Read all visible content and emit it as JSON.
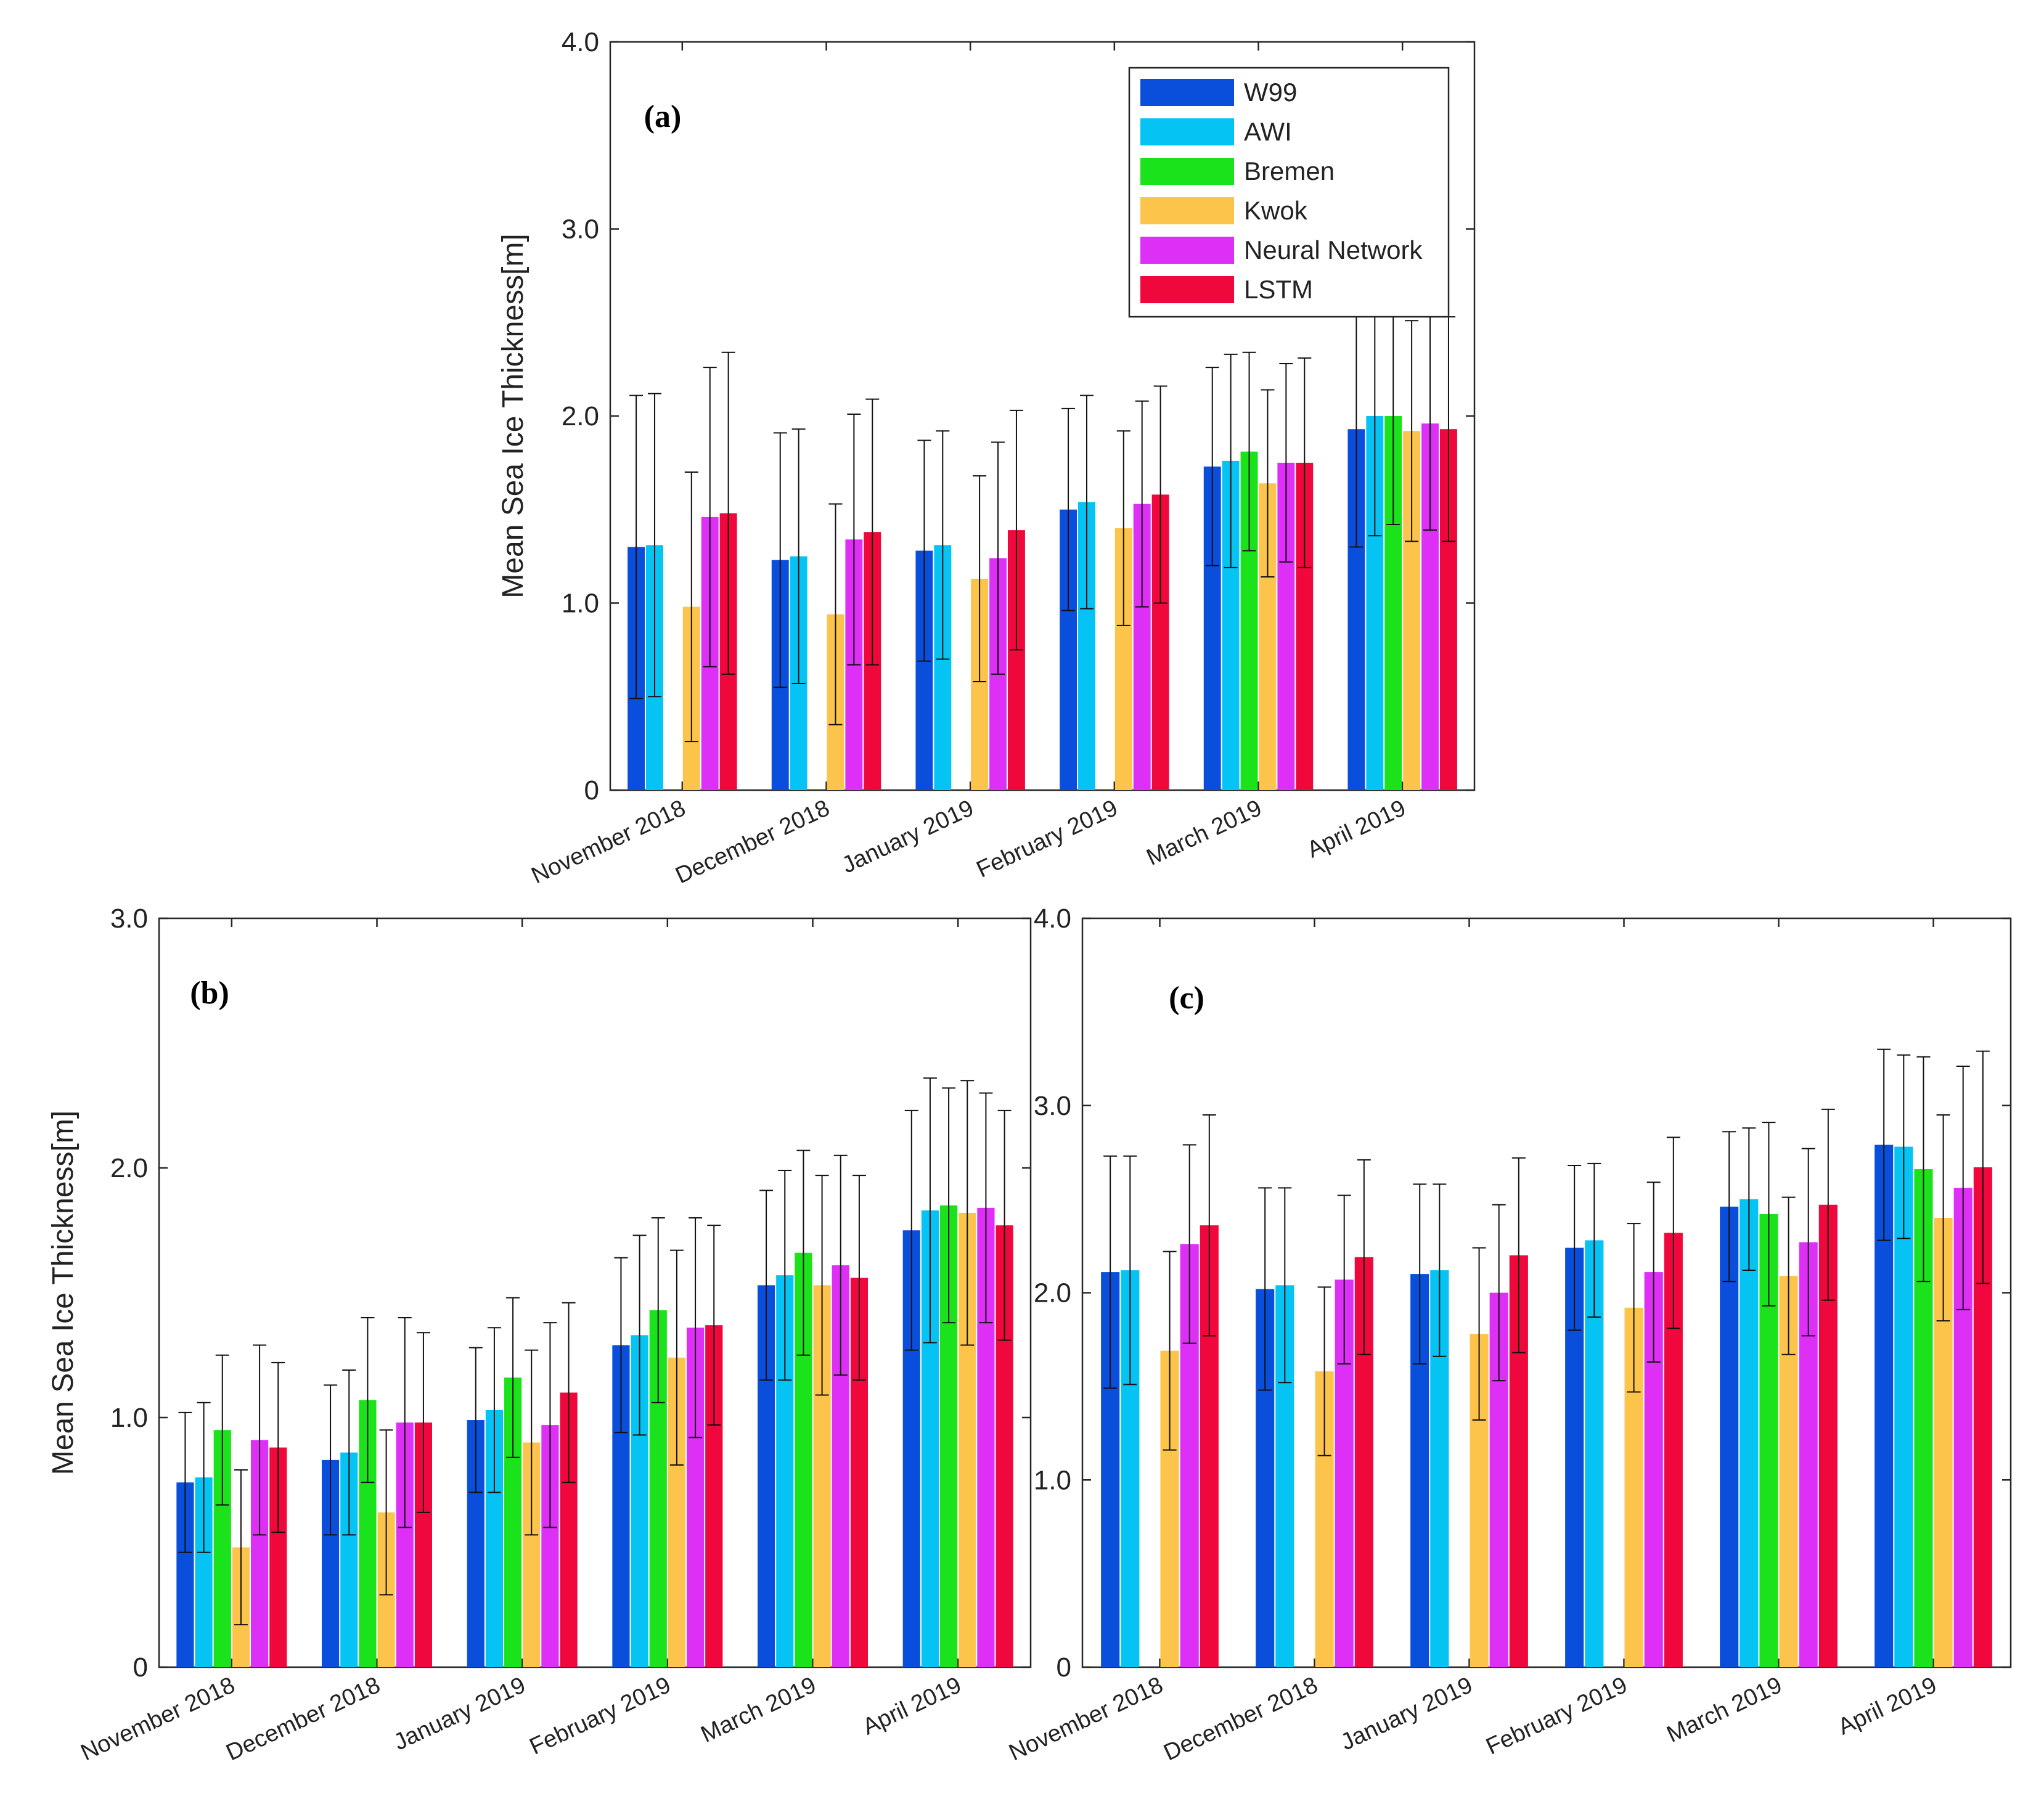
{
  "chart_data": [
    {
      "type": "bar",
      "panel_label": "(a)",
      "ylabel": "Mean Sea Ice Thickness[m]",
      "xlabel": "",
      "ylim": [
        0,
        4
      ],
      "yticks": [
        0,
        1,
        2,
        3,
        4
      ],
      "ytick_labels": [
        "0",
        "1.0",
        "2.0",
        "3.0",
        "4.0"
      ],
      "grid": false,
      "legend": {
        "position": "top-right",
        "entries": [
          "W99",
          "AWI",
          "Bremen",
          "Kwok",
          "Neural Network",
          "LSTM"
        ]
      },
      "categories": [
        "November 2018",
        "December 2018",
        "January 2019",
        "February 2019",
        "March 2019",
        "April 2019"
      ],
      "series": [
        {
          "name": "W99",
          "color": "#0a4fdc",
          "values": [
            1.3,
            1.23,
            1.28,
            1.5,
            1.73,
            1.93
          ],
          "std": [
            0.81,
            0.68,
            0.59,
            0.54,
            0.53,
            0.63
          ]
        },
        {
          "name": "AWI",
          "color": "#05c3f3",
          "values": [
            1.31,
            1.25,
            1.31,
            1.54,
            1.76,
            2.0
          ],
          "std": [
            0.81,
            0.68,
            0.61,
            0.57,
            0.57,
            0.64
          ]
        },
        {
          "name": "Bremen",
          "color": "#1be31b",
          "values": [
            null,
            null,
            null,
            null,
            1.81,
            2.0
          ],
          "std": [
            null,
            null,
            null,
            null,
            0.53,
            0.58
          ]
        },
        {
          "name": "Kwok",
          "color": "#fcc44b",
          "values": [
            0.98,
            0.94,
            1.13,
            1.4,
            1.64,
            1.92
          ],
          "std": [
            0.72,
            0.59,
            0.55,
            0.52,
            0.5,
            0.59
          ]
        },
        {
          "name": "Neural Network",
          "color": "#dd2ff5",
          "values": [
            1.46,
            1.34,
            1.24,
            1.53,
            1.75,
            1.96
          ],
          "std": [
            0.8,
            0.67,
            0.62,
            0.55,
            0.53,
            0.57
          ]
        },
        {
          "name": "LSTM",
          "color": "#f0073c",
          "values": [
            1.48,
            1.38,
            1.39,
            1.58,
            1.75,
            1.93
          ],
          "std": [
            0.86,
            0.71,
            0.64,
            0.58,
            0.56,
            0.6
          ]
        }
      ]
    },
    {
      "type": "bar",
      "panel_label": "(b)",
      "ylabel": "Mean Sea Ice Thickness[m]",
      "xlabel": "",
      "ylim": [
        0,
        3
      ],
      "yticks": [
        0,
        1,
        2,
        3
      ],
      "ytick_labels": [
        "0",
        "1.0",
        "2.0",
        "3.0"
      ],
      "grid": false,
      "categories": [
        "November 2018",
        "December 2018",
        "January 2019",
        "February 2019",
        "March 2019",
        "April 2019"
      ],
      "series": [
        {
          "name": "W99",
          "color": "#0a4fdc",
          "values": [
            0.74,
            0.83,
            0.99,
            1.29,
            1.53,
            1.75
          ],
          "std": [
            0.28,
            0.3,
            0.29,
            0.35,
            0.38,
            0.48
          ]
        },
        {
          "name": "AWI",
          "color": "#05c3f3",
          "values": [
            0.76,
            0.86,
            1.03,
            1.33,
            1.57,
            1.83
          ],
          "std": [
            0.3,
            0.33,
            0.33,
            0.4,
            0.42,
            0.53
          ]
        },
        {
          "name": "Bremen",
          "color": "#1be31b",
          "values": [
            0.95,
            1.07,
            1.16,
            1.43,
            1.66,
            1.85
          ],
          "std": [
            0.3,
            0.33,
            0.32,
            0.37,
            0.41,
            0.47
          ]
        },
        {
          "name": "Kwok",
          "color": "#fcc44b",
          "values": [
            0.48,
            0.62,
            0.9,
            1.24,
            1.53,
            1.82
          ],
          "std": [
            0.31,
            0.33,
            0.37,
            0.43,
            0.44,
            0.53
          ]
        },
        {
          "name": "Neural Network",
          "color": "#dd2ff5",
          "values": [
            0.91,
            0.98,
            0.97,
            1.36,
            1.61,
            1.84
          ],
          "std": [
            0.38,
            0.42,
            0.41,
            0.44,
            0.44,
            0.46
          ]
        },
        {
          "name": "LSTM",
          "color": "#f0073c",
          "values": [
            0.88,
            0.98,
            1.1,
            1.37,
            1.56,
            1.77
          ],
          "std": [
            0.34,
            0.36,
            0.36,
            0.4,
            0.41,
            0.46
          ]
        }
      ]
    },
    {
      "type": "bar",
      "panel_label": "(c)",
      "ylabel": "",
      "xlabel": "",
      "ylim": [
        0,
        4
      ],
      "yticks": [
        0,
        1,
        2,
        3,
        4
      ],
      "ytick_labels": [
        "0",
        "1.0",
        "2.0",
        "3.0",
        "4.0"
      ],
      "grid": false,
      "categories": [
        "November 2018",
        "December 2018",
        "January 2019",
        "February 2019",
        "March 2019",
        "April 2019"
      ],
      "series": [
        {
          "name": "W99",
          "color": "#0a4fdc",
          "values": [
            2.11,
            2.02,
            2.1,
            2.24,
            2.46,
            2.79
          ],
          "std": [
            0.62,
            0.54,
            0.48,
            0.44,
            0.4,
            0.51
          ]
        },
        {
          "name": "AWI",
          "color": "#05c3f3",
          "values": [
            2.12,
            2.04,
            2.12,
            2.28,
            2.5,
            2.78
          ],
          "std": [
            0.61,
            0.52,
            0.46,
            0.41,
            0.38,
            0.49
          ]
        },
        {
          "name": "Bremen",
          "color": "#1be31b",
          "values": [
            null,
            null,
            null,
            null,
            2.42,
            2.66
          ],
          "std": [
            null,
            null,
            null,
            null,
            0.49,
            0.6
          ]
        },
        {
          "name": "Kwok",
          "color": "#fcc44b",
          "values": [
            1.69,
            1.58,
            1.78,
            1.92,
            2.09,
            2.4
          ],
          "std": [
            0.53,
            0.45,
            0.46,
            0.45,
            0.42,
            0.55
          ]
        },
        {
          "name": "Neural Network",
          "color": "#dd2ff5",
          "values": [
            2.26,
            2.07,
            2.0,
            2.11,
            2.27,
            2.56
          ],
          "std": [
            0.53,
            0.45,
            0.47,
            0.48,
            0.5,
            0.65
          ]
        },
        {
          "name": "LSTM",
          "color": "#f0073c",
          "values": [
            2.36,
            2.19,
            2.2,
            2.32,
            2.47,
            2.67
          ],
          "std": [
            0.59,
            0.52,
            0.52,
            0.51,
            0.51,
            0.62
          ]
        }
      ]
    }
  ]
}
